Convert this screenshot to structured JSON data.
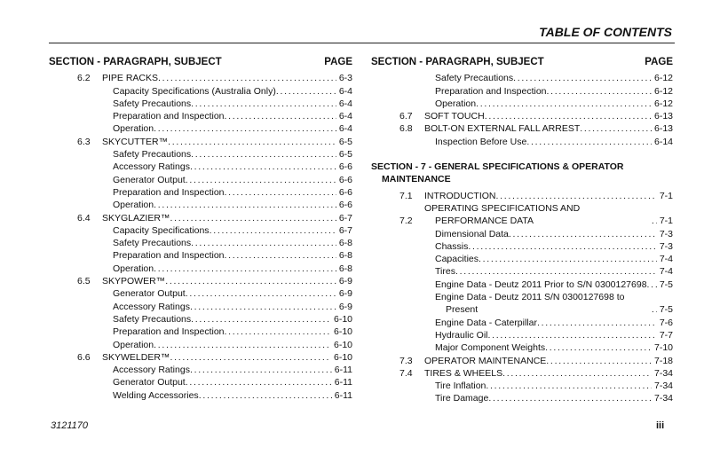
{
  "header": {
    "title": "TABLE OF CONTENTS"
  },
  "columns": [
    {
      "heading": "SECTION - PARAGRAPH, SUBJECT",
      "page_heading": "PAGE",
      "groups": [
        {
          "number": "6.2",
          "title": "PIPE RACKS",
          "page": "6-3",
          "items": [
            {
              "text": "Capacity Specifications (Australia Only)",
              "page": "6-4"
            },
            {
              "text": "Safety Precautions",
              "page": "6-4"
            },
            {
              "text": "Preparation and Inspection",
              "page": "6-4"
            },
            {
              "text": "Operation",
              "page": "6-4"
            }
          ]
        },
        {
          "number": "6.3",
          "title": "SKYCUTTER™",
          "page": "6-5",
          "items": [
            {
              "text": "Safety Precautions",
              "page": "6-5"
            },
            {
              "text": "Accessory Ratings",
              "page": "6-6"
            },
            {
              "text": "Generator Output",
              "page": "6-6"
            },
            {
              "text": "Preparation and Inspection",
              "page": "6-6"
            },
            {
              "text": "Operation",
              "page": "6-6"
            }
          ]
        },
        {
          "number": "6.4",
          "title": "SKYGLAZIER™",
          "page": "6-7",
          "items": [
            {
              "text": "Capacity Specifications",
              "page": "6-7"
            },
            {
              "text": "Safety Precautions",
              "page": "6-8"
            },
            {
              "text": "Preparation and Inspection",
              "page": "6-8"
            },
            {
              "text": "Operation",
              "page": "6-8"
            }
          ]
        },
        {
          "number": "6.5",
          "title": "SKYPOWER™",
          "page": "6-9",
          "items": [
            {
              "text": "Generator Output",
              "page": "6-9"
            },
            {
              "text": "Accessory Ratings",
              "page": "6-9"
            },
            {
              "text": "Safety Precautions",
              "page": "6-10"
            },
            {
              "text": "Preparation and Inspection",
              "page": "6-10"
            },
            {
              "text": "Operation",
              "page": "6-10"
            }
          ]
        },
        {
          "number": "6.6",
          "title": "SKYWELDER™",
          "page": "6-10",
          "items": [
            {
              "text": "Accessory Ratings",
              "page": "6-11"
            },
            {
              "text": "Generator Output",
              "page": "6-11"
            },
            {
              "text": "Welding Accessories",
              "page": "6-11"
            }
          ]
        }
      ]
    },
    {
      "heading": "SECTION - PARAGRAPH, SUBJECT",
      "page_heading": "PAGE",
      "continued": [
        {
          "text": "Safety Precautions",
          "page": "6-12"
        },
        {
          "text": "Preparation and Inspection",
          "page": "6-12"
        },
        {
          "text": "Operation",
          "page": "6-12"
        }
      ],
      "groups": [
        {
          "number": "6.7",
          "title": "SOFT TOUCH",
          "page": "6-13"
        },
        {
          "number": "6.8",
          "title": "BOLT-ON EXTERNAL FALL ARREST",
          "page": "6-13",
          "items": [
            {
              "text": "Inspection Before Use",
              "page": "6-14"
            }
          ]
        }
      ],
      "section": {
        "title": "SECTION - 7 - GENERAL SPECIFICATIONS & OPERATOR MAINTENANCE",
        "groups": [
          {
            "number": "7.1",
            "title": "INTRODUCTION",
            "page": "7-1"
          },
          {
            "number": "7.2",
            "title": "OPERATING SPECIFICATIONS AND PERFORMANCE DATA",
            "page": "7-1",
            "items": [
              {
                "text": "Dimensional Data",
                "page": "7-3"
              },
              {
                "text": "Chassis",
                "page": "7-3"
              },
              {
                "text": "Capacities",
                "page": "7-4"
              },
              {
                "text": "Tires",
                "page": "7-4"
              },
              {
                "text": "Engine Data - Deutz 2011 Prior to S/N 0300127698",
                "page": "7-5"
              },
              {
                "text": "Engine Data - Deutz 2011 S/N 0300127698 to Present",
                "page": "7-5"
              },
              {
                "text": "Engine Data - Caterpillar",
                "page": "7-6"
              },
              {
                "text": "Hydraulic Oil",
                "page": "7-7"
              },
              {
                "text": "Major Component Weights",
                "page": "7-10"
              }
            ]
          },
          {
            "number": "7.3",
            "title": "OPERATOR MAINTENANCE",
            "page": "7-18"
          },
          {
            "number": "7.4",
            "title": "TIRES & WHEELS",
            "page": "7-34",
            "items": [
              {
                "text": "Tire Inflation",
                "page": "7-34"
              },
              {
                "text": "Tire Damage",
                "page": "7-34"
              }
            ]
          }
        ]
      }
    }
  ],
  "footer": {
    "doc_number": "3121170",
    "page": "iii"
  }
}
